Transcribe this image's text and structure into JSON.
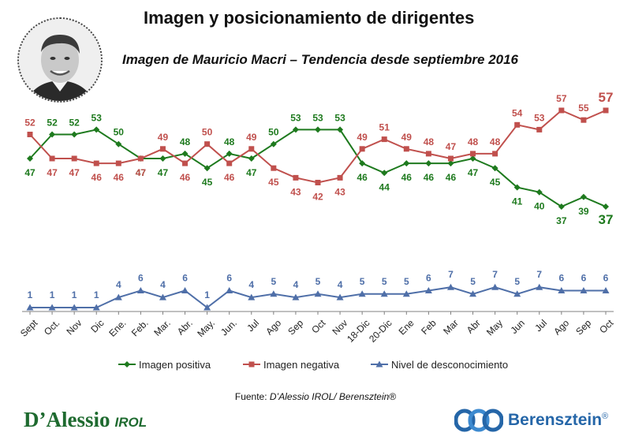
{
  "header": {
    "title": "Imagen y posicionamiento de dirigentes",
    "subtitle": "Imagen de Mauricio Macri – Tendencia desde septiembre 2016"
  },
  "source": {
    "prefix": "Fuente: ",
    "text": "D’Alessio IROL/ Berensztein®"
  },
  "logos": {
    "left_main": "D’Alessio",
    "left_suffix": "IROL",
    "right_name": "Berensztein",
    "right_mark": "®"
  },
  "colors": {
    "positive": "#1e7a1e",
    "negative": "#c0504d",
    "unknown": "#4f6fa8",
    "axis": "#808080"
  },
  "chart_data": {
    "type": "line",
    "categories": [
      "Sept",
      "Oct.",
      "Nov",
      "Dic",
      "Ene.",
      "Feb.",
      "Mar.",
      "Abr.",
      "May.",
      "Jun.",
      "Jul",
      "Ago",
      "Sep",
      "Oct",
      "Nov",
      "18-Dic",
      "20-Dic",
      "Ene",
      "Feb",
      "Mar",
      "Abr",
      "May",
      "Jun",
      "Jul",
      "Ago",
      "Sep",
      "Oct"
    ],
    "series": [
      {
        "name": "Imagen positiva",
        "color": "#1e7a1e",
        "marker": "diamond",
        "values": [
          47,
          52,
          52,
          53,
          50,
          47,
          47,
          48,
          45,
          48,
          47,
          50,
          53,
          53,
          53,
          46,
          44,
          46,
          46,
          46,
          47,
          45,
          41,
          40,
          37,
          39,
          37
        ]
      },
      {
        "name": "Imagen negativa",
        "color": "#c0504d",
        "marker": "square",
        "values": [
          52,
          47,
          47,
          46,
          46,
          47,
          49,
          46,
          50,
          46,
          49,
          45,
          43,
          42,
          43,
          49,
          51,
          49,
          48,
          47,
          48,
          48,
          54,
          53,
          57,
          55,
          57
        ]
      },
      {
        "name": "Nivel de desconocimiento",
        "color": "#4f6fa8",
        "marker": "triangle",
        "values": [
          1,
          1,
          1,
          1,
          4,
          6,
          4,
          6,
          1,
          6,
          4,
          5,
          4,
          5,
          4,
          5,
          5,
          5,
          6,
          7,
          5,
          7,
          5,
          7,
          6,
          6,
          6
        ]
      }
    ],
    "legend_position": "bottom",
    "grid": false
  }
}
